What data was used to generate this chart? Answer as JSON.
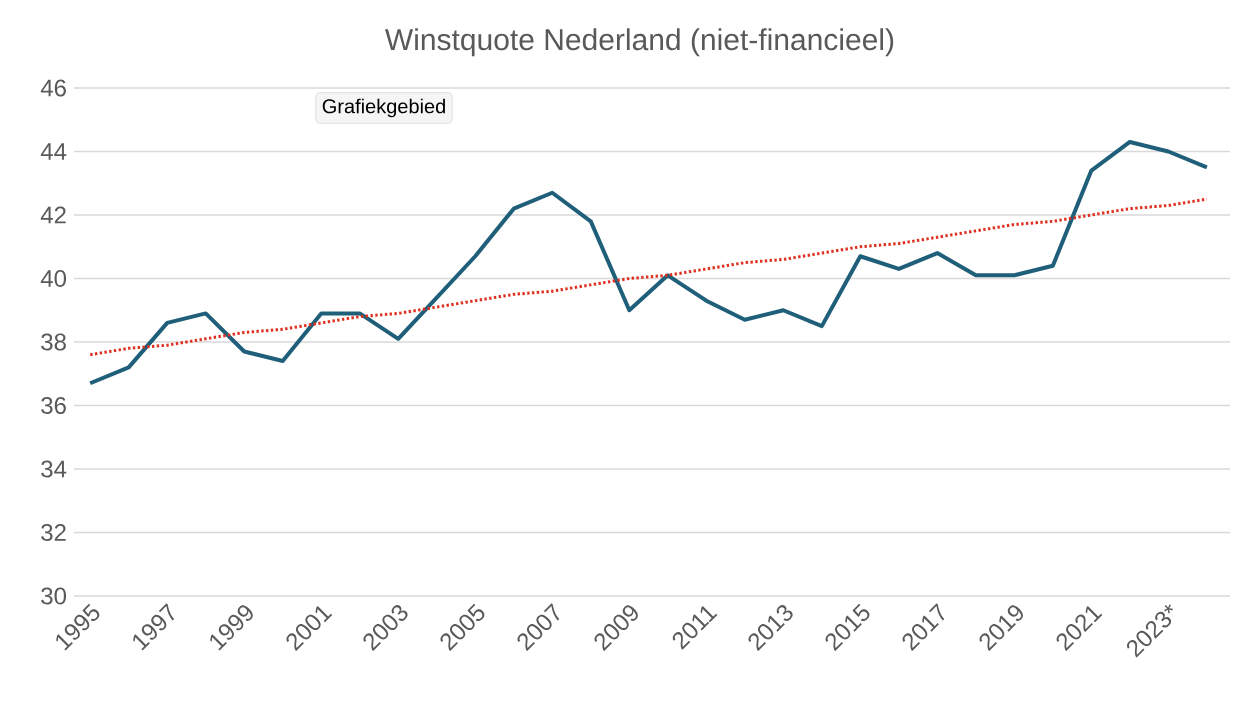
{
  "chart_data": {
    "type": "line",
    "title": "Winstquote Nederland (niet-financieel)",
    "categories": [
      "1995",
      null,
      "1997",
      null,
      "1999",
      null,
      "2001",
      null,
      "2003",
      null,
      "2005",
      null,
      "2007",
      null,
      "2009",
      null,
      "2011",
      null,
      "2013",
      null,
      "2015",
      null,
      "2017",
      null,
      "2019",
      null,
      "2021",
      null,
      "2023*",
      null
    ],
    "series": [
      {
        "color": "#1f5f7a",
        "line_style": "solid",
        "values": [
          36.7,
          37.2,
          38.6,
          38.9,
          37.7,
          37.4,
          38.9,
          38.9,
          38.1,
          39.4,
          40.7,
          42.2,
          42.7,
          41.8,
          39.0,
          40.1,
          39.3,
          38.7,
          39.0,
          38.5,
          40.7,
          40.3,
          40.8,
          40.1,
          40.1,
          40.4,
          43.4,
          44.3,
          44.0,
          43.5
        ]
      },
      {
        "color": "#e03020",
        "line_style": "dotted",
        "values": [
          37.6,
          37.8,
          37.9,
          38.1,
          38.3,
          38.4,
          38.6,
          38.8,
          38.9,
          39.1,
          39.3,
          39.5,
          39.6,
          39.8,
          40.0,
          40.1,
          40.3,
          40.5,
          40.6,
          40.8,
          41.0,
          41.1,
          41.3,
          41.5,
          41.7,
          41.8,
          42.0,
          42.2,
          42.3,
          42.5
        ]
      }
    ],
    "ylim": [
      30,
      46
    ],
    "yticks": [
      30,
      32,
      34,
      36,
      38,
      40,
      42,
      44,
      46
    ],
    "grid": "y",
    "marker": "none",
    "annotations": [
      "Grafiekgebied"
    ]
  }
}
